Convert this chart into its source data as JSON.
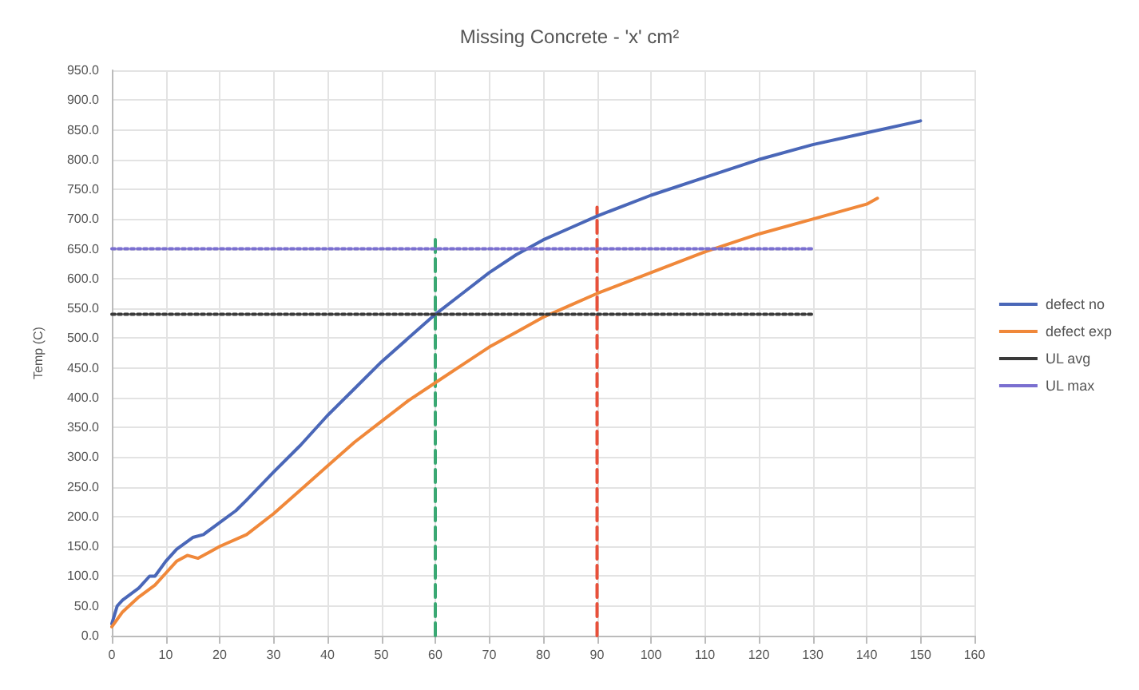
{
  "chart_data": {
    "type": "line",
    "title": "Missing Concrete - 'x' cm²",
    "ylabel": "Temp (C)",
    "xlim": [
      0,
      160
    ],
    "xticks": [
      0,
      10,
      20,
      30,
      40,
      50,
      60,
      70,
      80,
      90,
      100,
      110,
      120,
      130,
      140,
      150,
      160
    ],
    "ylim": [
      0,
      950
    ],
    "yticks": [
      {
        "value": 0,
        "label": "0.0"
      },
      {
        "value": 50,
        "label": "50.0"
      },
      {
        "value": 100,
        "label": "100.0"
      },
      {
        "value": 150,
        "label": "150.0"
      },
      {
        "value": 200,
        "label": "200.0"
      },
      {
        "value": 250,
        "label": "250.0"
      },
      {
        "value": 300,
        "label": "300.0"
      },
      {
        "value": 350,
        "label": "350.0"
      },
      {
        "value": 400,
        "label": "400.0"
      },
      {
        "value": 450,
        "label": "450.0"
      },
      {
        "value": 500,
        "label": "500.0"
      },
      {
        "value": 550,
        "label": "550.0"
      },
      {
        "value": 600,
        "label": "600.0"
      },
      {
        "value": 650,
        "label": "650.0"
      },
      {
        "value": 700,
        "label": "700.0"
      },
      {
        "value": 750,
        "label": "750.0"
      },
      {
        "value": 800,
        "label": "800.0"
      },
      {
        "value": 850,
        "label": "850.0"
      },
      {
        "value": 900,
        "label": "900.0"
      },
      {
        "value": 950,
        "label": "950.0"
      }
    ],
    "grid": true,
    "legend": "right",
    "marker": "none",
    "series": [
      {
        "name": "defect no",
        "color": "#4a67b8",
        "x": [
          0,
          1,
          2,
          5,
          7,
          8,
          10,
          12,
          15,
          17,
          20,
          23,
          25,
          30,
          35,
          40,
          45,
          50,
          55,
          60,
          65,
          70,
          75,
          80,
          85,
          90,
          100,
          110,
          120,
          130,
          140,
          150
        ],
        "values": [
          20,
          50,
          60,
          80,
          100,
          100,
          125,
          145,
          165,
          170,
          190,
          210,
          228,
          275,
          320,
          370,
          415,
          460,
          500,
          540,
          575,
          610,
          640,
          665,
          685,
          705,
          740,
          770,
          800,
          825,
          845,
          865
        ]
      },
      {
        "name": "defect exp",
        "color": "#f0883a",
        "x": [
          0,
          2,
          5,
          8,
          10,
          12,
          14,
          16,
          18,
          20,
          25,
          30,
          35,
          40,
          45,
          50,
          55,
          60,
          65,
          70,
          75,
          80,
          85,
          90,
          100,
          110,
          120,
          130,
          140,
          142
        ],
        "values": [
          15,
          40,
          65,
          85,
          105,
          125,
          135,
          130,
          140,
          150,
          170,
          205,
          245,
          285,
          325,
          360,
          395,
          425,
          455,
          485,
          510,
          535,
          555,
          575,
          610,
          645,
          675,
          700,
          725,
          735
        ]
      },
      {
        "name": "UL avg",
        "color": "#3a3a3a",
        "line_style": "dotted",
        "x": [
          0,
          130
        ],
        "values": [
          540,
          540
        ]
      },
      {
        "name": "UL max",
        "color": "#7a6fd0",
        "line_style": "dotted",
        "x": [
          0,
          130
        ],
        "values": [
          650,
          650
        ]
      },
      {
        "color": "#3aa873",
        "line_style": "dashed",
        "x": [
          60,
          60
        ],
        "values": [
          0,
          670
        ]
      },
      {
        "color": "#e8503a",
        "line_style": "dashed",
        "x": [
          90,
          90
        ],
        "values": [
          0,
          720
        ]
      }
    ]
  }
}
